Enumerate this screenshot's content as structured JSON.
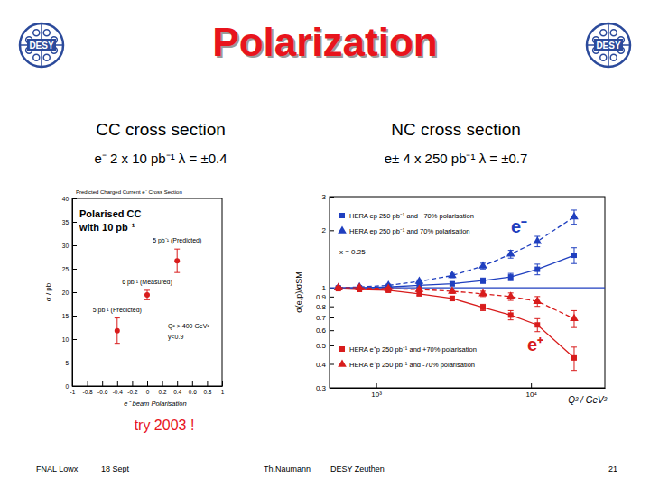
{
  "slide": {
    "title": "Polarization",
    "logo_text": "DESY",
    "note": "try 2003 !",
    "footer": [
      "FNAL Lowx",
      "18 Sept",
      "Th.Naumann",
      "DESY Zeuthen",
      "21"
    ]
  },
  "chart_data": [
    {
      "type": "scatter",
      "title": "CC cross section",
      "subtitle": "e⁻  2 x 10 pb⁻¹  λ = ±0.4",
      "x_label": "e⁻ beam Polarisation",
      "y_label": "σ / pb",
      "annotations": [
        "Predicted Charged Current e⁻ Cross Section",
        "Polarised CC",
        "with 10 pb⁻¹",
        "Q² > 400 GeV²",
        "y<0.9"
      ],
      "x": [
        -0.4,
        0,
        0.4
      ],
      "values": [
        11.8,
        19.4,
        26.7
      ],
      "errors": [
        2.7,
        1,
        2.5
      ],
      "point_labels": [
        "5 pb⁻¹ (Predicted)",
        "6 pb⁻¹ (Measured)",
        "5 pb⁻¹ (Predicted)"
      ],
      "color": "#d81c1c",
      "marker": "circle",
      "xlim": [
        -1,
        1
      ],
      "ylim": [
        0,
        40
      ],
      "xticks": [
        -1,
        -0.8,
        -0.6,
        -0.4,
        -0.2,
        0,
        0.2,
        0.4,
        0.6,
        0.8,
        1
      ],
      "yticks": [
        0,
        5,
        10,
        15,
        20,
        25,
        30,
        35,
        40
      ]
    },
    {
      "type": "line",
      "title": "NC cross section",
      "subtitle": "e±  4 x 250 pb⁻¹  λ = ±0.7",
      "x_label": "Q² / GeV²",
      "y_label": "σ(e,p)/σSM",
      "log": true,
      "annotations": [
        "x = 0.25",
        {
          "text": "e⁻",
          "color": "#1f3fbf"
        },
        {
          "text": "e⁺",
          "color": "#d81c1c"
        }
      ],
      "x": [
        570,
        780,
        1200,
        1900,
        3100,
        4900,
        7400,
        11000,
        19000
      ],
      "reference_line": 1,
      "series": [
        {
          "name": "HERA ep 250 pb⁻¹ and −70% polarisation",
          "color": "#1f3fbf",
          "marker": "square",
          "line_style": "solid",
          "values": [
            1.0,
            1.0,
            1.01,
            1.03,
            1.05,
            1.09,
            1.14,
            1.25,
            1.48
          ],
          "errors": [
            0.01,
            0.01,
            0.015,
            0.02,
            0.025,
            0.035,
            0.05,
            0.08,
            0.14
          ]
        },
        {
          "name": "HERA ep 250 pb⁻¹ and 70% polarisation",
          "color": "#1f3fbf",
          "marker": "triangle",
          "line_style": "dashed",
          "values": [
            1.0,
            1.01,
            1.03,
            1.08,
            1.16,
            1.3,
            1.5,
            1.75,
            2.35
          ],
          "errors": [
            0.01,
            0.01,
            0.015,
            0.02,
            0.03,
            0.045,
            0.07,
            0.11,
            0.2
          ]
        },
        {
          "name": "HERA e⁺p 250 pb⁻¹ and +70% polarisation",
          "color": "#d81c1c",
          "marker": "square",
          "line_style": "solid",
          "values": [
            0.99,
            0.98,
            0.97,
            0.93,
            0.88,
            0.79,
            0.72,
            0.64,
            0.43
          ],
          "errors": [
            0.01,
            0.01,
            0.015,
            0.02,
            0.025,
            0.03,
            0.04,
            0.05,
            0.06
          ]
        },
        {
          "name": "HERA e⁺p 250 pb⁻¹ and -70% polarisation",
          "color": "#d81c1c",
          "marker": "triangle",
          "line_style": "dashed",
          "values": [
            1.0,
            1.0,
            0.99,
            0.98,
            0.96,
            0.93,
            0.9,
            0.85,
            0.69
          ],
          "errors": [
            0.01,
            0.01,
            0.015,
            0.02,
            0.025,
            0.03,
            0.04,
            0.05,
            0.07
          ]
        }
      ],
      "xlim": [
        500,
        30000
      ],
      "ylim": [
        0.3,
        3
      ],
      "xticks": [
        {
          "value": 1000,
          "label": "10³"
        },
        {
          "value": 10000,
          "label": "10⁴"
        }
      ],
      "yticks": [
        0.3,
        0.4,
        0.5,
        0.6,
        0.7,
        0.8,
        0.9,
        1,
        2,
        3
      ]
    }
  ]
}
